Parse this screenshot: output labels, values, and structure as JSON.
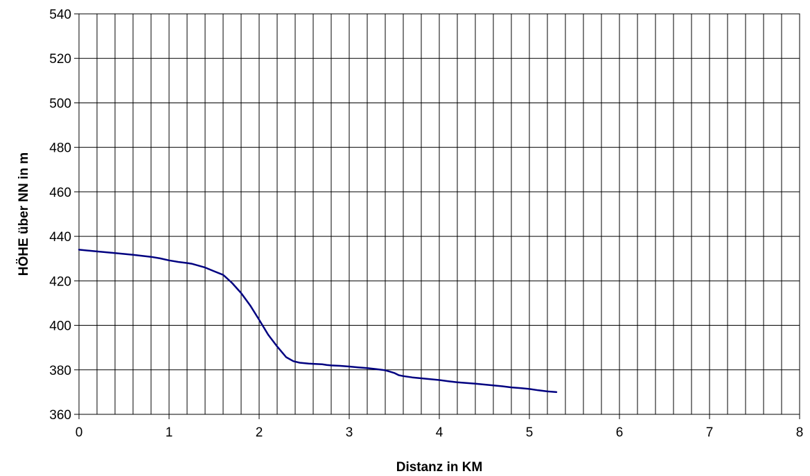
{
  "chart_data": {
    "type": "line",
    "title": "",
    "xlabel": "Distanz in KM",
    "ylabel": "HÖHE über NN in m",
    "xlim": [
      0,
      8
    ],
    "ylim": [
      360,
      540
    ],
    "x_major_ticks": [
      0,
      1,
      2,
      3,
      4,
      5,
      6,
      7,
      8
    ],
    "x_gridline_step": 0.2,
    "y_ticks": [
      360,
      380,
      400,
      420,
      440,
      460,
      480,
      500,
      520,
      540
    ],
    "grid": true,
    "legend": "none",
    "series": [
      {
        "color": "#000080",
        "x": [
          0,
          0.2,
          0.4,
          0.6,
          0.8,
          0.9,
          1.0,
          1.1,
          1.2,
          1.25,
          1.4,
          1.5,
          1.6,
          1.62,
          1.7,
          1.8,
          1.9,
          2.0,
          2.1,
          2.2,
          2.3,
          2.38,
          2.45,
          2.5,
          2.55,
          2.6,
          2.7,
          2.75,
          2.8,
          2.9,
          3.0,
          3.1,
          3.2,
          3.3,
          3.4,
          3.45,
          3.5,
          3.55,
          3.6,
          3.7,
          3.8,
          3.9,
          4.0,
          4.1,
          4.2,
          4.3,
          4.4,
          4.5,
          4.6,
          4.7,
          4.8,
          4.9,
          5.0,
          5.1,
          5.2,
          5.3
        ],
        "y": [
          434,
          433.2,
          432.5,
          431.7,
          430.8,
          430.1,
          429.2,
          428.5,
          428,
          427.7,
          426,
          424.3,
          422.7,
          422,
          419,
          414.5,
          409,
          402.5,
          395.8,
          390.5,
          385.7,
          383.9,
          383.2,
          383,
          382.8,
          382.7,
          382.5,
          382.2,
          382,
          381.8,
          381.5,
          381.1,
          380.8,
          380.3,
          379.8,
          379.2,
          378.6,
          377.6,
          377.2,
          376.6,
          376.2,
          375.8,
          375.4,
          374.9,
          374.4,
          374.1,
          373.8,
          373.4,
          373.0,
          372.6,
          372.1,
          371.8,
          371.4,
          370.8,
          370.3,
          370.0
        ]
      }
    ]
  }
}
